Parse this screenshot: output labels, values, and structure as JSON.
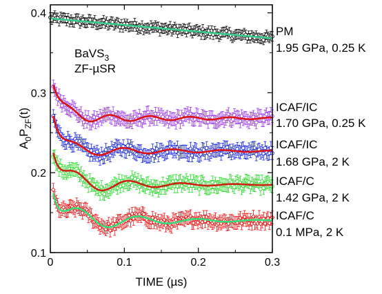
{
  "chart_data": {
    "type": "scatter",
    "title": "",
    "xlabel": "TIME (µs)",
    "ylabel_parts": {
      "base": "A",
      "sub0": "0",
      "mid": "P",
      "sub1": "ZF",
      "end": "(t)"
    },
    "xlim": [
      0,
      0.3
    ],
    "ylim": [
      0.1,
      0.41
    ],
    "xticks": [
      "0",
      "0.1",
      "0.2",
      "0.3"
    ],
    "xtick_values": [
      0,
      0.1,
      0.2,
      0.3
    ],
    "yticks": [
      "0.1",
      "0.2",
      "0.3",
      "0.4"
    ],
    "ytick_values": [
      0.1,
      0.2,
      0.3,
      0.4
    ],
    "sample_label": {
      "line1_base": "BaVS",
      "line1_sub": "3",
      "line2": "ZF-µSR"
    },
    "series": [
      {
        "phase": "PM",
        "condition": "1.95 GPa, 0.25 K",
        "marker": "circle",
        "color": "#000000",
        "fit_color": "#33cc88",
        "model": {
          "type": "relax",
          "a0": 0.393,
          "amp": 0.0,
          "decay": 1.0,
          "freq": 0,
          "slope": -0.083
        },
        "noise": 0.004,
        "err": 0.006
      },
      {
        "phase": "ICAF/IC",
        "condition": "1.70 GPa, 0.25 K",
        "marker": "circle",
        "color": "#9933ee",
        "fit_color": "#dd1111",
        "model": {
          "type": "osc",
          "base": 0.268,
          "amp": 0.065,
          "tau": 0.013,
          "amp2": 0.007,
          "freq": 18.5,
          "tau2": 0.15
        },
        "noise": 0.005,
        "err": 0.008
      },
      {
        "phase": "ICAF/IC",
        "condition": "1.68 GPa, 2 K",
        "marker": "circle",
        "color": "#1122dd",
        "fit_color": "#dd1111",
        "model": {
          "type": "osc",
          "base": 0.227,
          "amp": 0.075,
          "tau": 0.011,
          "amp2": 0.009,
          "freq": 15.0,
          "tau2": 0.12
        },
        "noise": 0.005,
        "err": 0.008
      },
      {
        "phase": "ICAF/C",
        "condition": "1.42 GPa, 2 K",
        "marker": "circle",
        "color": "#22dd22",
        "fit_color": "#cc2211",
        "model": {
          "type": "osc",
          "base": 0.185,
          "amp": 0.078,
          "tau": 0.012,
          "amp2": 0.018,
          "freq": 14.0,
          "tau2": 0.08
        },
        "noise": 0.005,
        "err": 0.008
      },
      {
        "phase": "ICAF/C",
        "condition": "0.1 MPa, 2 K",
        "marker": "diamond",
        "color": "#ee1111",
        "fit_color": "#33dd77",
        "model": {
          "type": "osc",
          "base": 0.14,
          "amp": 0.075,
          "tau": 0.011,
          "amp2": 0.02,
          "freq": 12.5,
          "tau2": 0.09
        },
        "noise": 0.005,
        "err": 0.008
      }
    ]
  }
}
